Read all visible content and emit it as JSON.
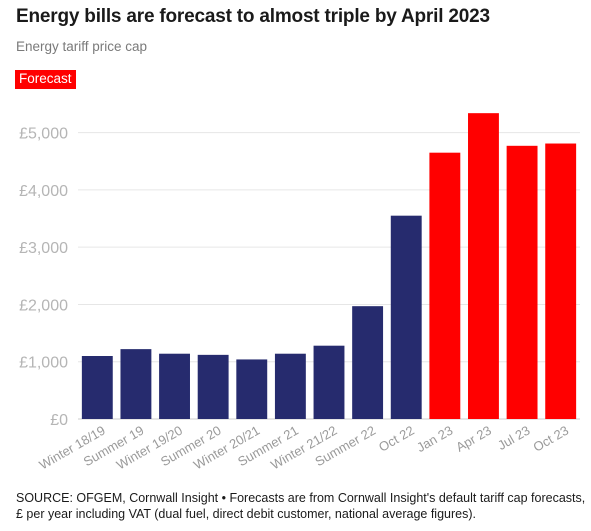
{
  "header": {
    "title": "Energy bills are forecast to almost triple by April 2023",
    "subtitle": "Energy tariff price cap",
    "legend_label": "Forecast"
  },
  "footer": {
    "source": "SOURCE: OFGEM, Cornwall Insight • Forecasts are from Cornwall Insight's default tariff cap forecasts, £ per year including VAT (dual fuel, direct debit customer, national average figures)."
  },
  "colors": {
    "actual": "#262b6e",
    "forecast": "#ff0000",
    "grid": "#e6e6e6",
    "axis": "#cccccc"
  },
  "chart_data": {
    "type": "bar",
    "title": "Energy bills are forecast to almost triple by April 2023",
    "subtitle": "Energy tariff price cap",
    "xlabel": "",
    "ylabel": "",
    "ylim": [
      0,
      5500
    ],
    "yticks": [
      0,
      1000,
      2000,
      3000,
      4000,
      5000
    ],
    "ytick_labels": [
      "£0",
      "£1,000",
      "£2,000",
      "£3,000",
      "£4,000",
      "£5,000"
    ],
    "grid": true,
    "legend": "top-left",
    "categories": [
      "Winter 18/19",
      "Summer 19",
      "Winter 19/20",
      "Summer 20",
      "Winter 20/21",
      "Summer 21",
      "Winter 21/22",
      "Summer 22",
      "Oct 22",
      "Jan 23",
      "Apr 23",
      "Jul 23",
      "Oct 23"
    ],
    "series": [
      {
        "name": "Forecast",
        "values": [
          1100,
          1220,
          1140,
          1120,
          1040,
          1140,
          1280,
          1970,
          3550,
          4650,
          5340,
          4770,
          4810
        ]
      }
    ],
    "forecast": [
      false,
      false,
      false,
      false,
      false,
      false,
      false,
      false,
      false,
      true,
      true,
      true,
      true
    ]
  }
}
